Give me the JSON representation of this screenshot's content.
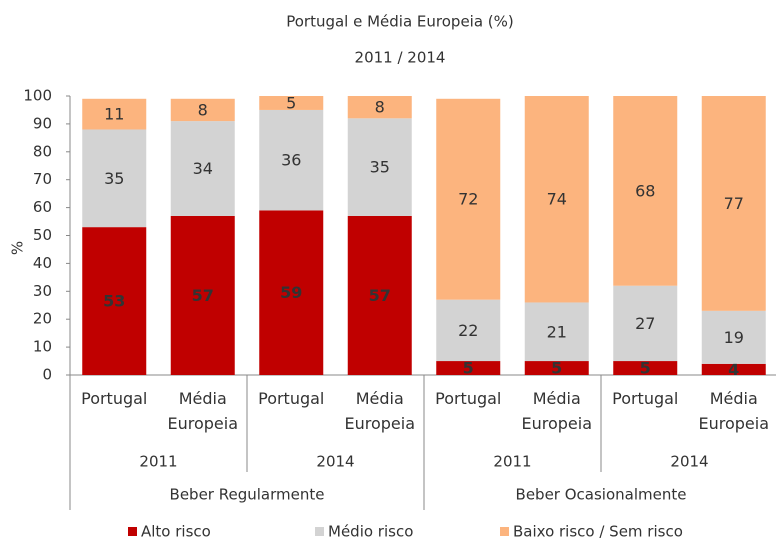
{
  "chart_data": {
    "type": "stacked_bar",
    "title": "Portugal e Média Europeia (%)",
    "subtitle": "2011 / 2014",
    "y_label": "%",
    "categories": [
      "Portugal",
      "Média Europeia",
      "Portugal",
      "Média Europeia",
      "Portugal",
      "Média Europeia",
      "Portugal",
      "Média Europeia"
    ],
    "years": [
      "2011",
      "2014",
      "2011",
      "2014"
    ],
    "groups": [
      "Beber Regularmente",
      "Beber Ocasionalmente"
    ],
    "series": [
      {
        "name": "Alto risco",
        "color": "#c00000",
        "label_color": "#ffffff",
        "values": [
          53,
          57,
          59,
          57,
          5,
          5,
          5,
          4
        ]
      },
      {
        "name": "Médio risco",
        "color": "#d3d3d3",
        "label_color": "#333333",
        "values": [
          35,
          34,
          36,
          35,
          22,
          21,
          27,
          19
        ]
      },
      {
        "name": "Baixo risco / Sem risco",
        "color": "#fcb47e",
        "label_color": "#333333",
        "values": [
          11,
          8,
          5,
          8,
          72,
          74,
          68,
          77
        ]
      }
    ],
    "ylim": [
      0,
      100
    ],
    "yticks": [
      0,
      10,
      20,
      30,
      40,
      50,
      60,
      70,
      80,
      90,
      100
    ],
    "legend": "bottom"
  }
}
